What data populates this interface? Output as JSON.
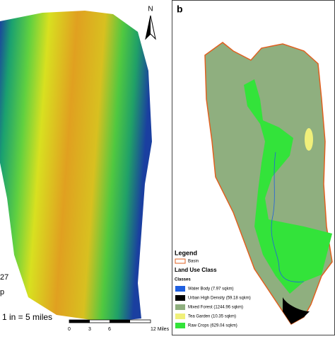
{
  "left_panel": {
    "north": "N",
    "cut_labels": [
      "27",
      "p"
    ],
    "scale_text": "1 in = 5 miles",
    "scale_labels": [
      "0",
      "3",
      "6",
      "12 Miles"
    ]
  },
  "right_panel": {
    "label": "b",
    "legend": {
      "title": "Legend",
      "basin": "Basin",
      "class_title": "Land Use Class",
      "classes_title": "Classes",
      "classes": [
        {
          "label": "Water Body (7.97 sqkm)",
          "color": "#1f5fe0"
        },
        {
          "label": "Urban High Density (59.18 sqkm)",
          "color": "#000000"
        },
        {
          "label": "Mixed Forest (1244.96 sqkm)",
          "color": "#8faf7f"
        },
        {
          "label": "Tea Garden (10.35 sqkm)",
          "color": "#f0f07a"
        },
        {
          "label": "Raw Crops (629.04 sqkm)",
          "color": "#33e33a"
        }
      ]
    }
  }
}
